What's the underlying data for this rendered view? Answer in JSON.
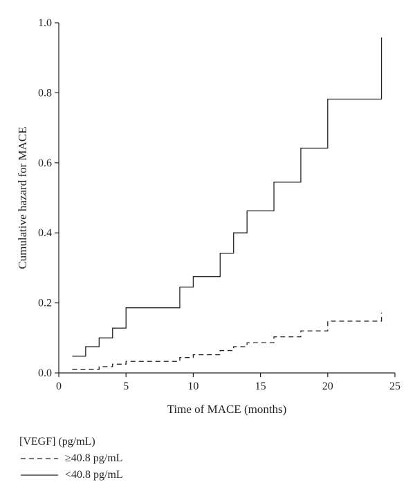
{
  "chart_data": {
    "type": "line",
    "title": "",
    "xlabel": "Time of MACE (months)",
    "ylabel": "Cumulative hazard for MACE",
    "xlim": [
      0,
      25
    ],
    "ylim": [
      0,
      1.0
    ],
    "x_ticks": [
      0,
      5,
      10,
      15,
      20,
      25
    ],
    "x_tick_labels": [
      "0",
      "5",
      "10",
      "15",
      "20",
      "25"
    ],
    "y_ticks": [
      0,
      0.2,
      0.4,
      0.6,
      0.8,
      1.0
    ],
    "y_tick_labels": [
      "0.0",
      "0.2",
      "0.4",
      "0.6",
      "0.8",
      "1.0"
    ],
    "grid": false,
    "legend_position": "bottom-left",
    "legend_title": "[VEGF] (pg/mL)",
    "series": [
      {
        "name": "≥40.8 pg/mL",
        "style": "dashed",
        "color": "#231f20",
        "x": [
          1,
          3,
          4,
          5,
          9,
          10,
          12,
          13,
          14,
          16,
          18,
          20,
          24
        ],
        "y": [
          0.01,
          0.018,
          0.025,
          0.033,
          0.044,
          0.052,
          0.064,
          0.075,
          0.086,
          0.103,
          0.12,
          0.148,
          0.172
        ]
      },
      {
        "name": "<40.8 pg/mL",
        "style": "solid",
        "color": "#231f20",
        "x": [
          1,
          2,
          3,
          4,
          5,
          9,
          10,
          12,
          13,
          14,
          16,
          18,
          20,
          24
        ],
        "y": [
          0.048,
          0.075,
          0.1,
          0.128,
          0.186,
          0.245,
          0.275,
          0.342,
          0.4,
          0.463,
          0.545,
          0.642,
          0.782,
          0.958
        ]
      }
    ]
  }
}
